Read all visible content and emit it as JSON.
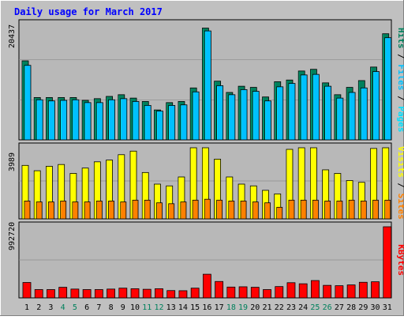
{
  "title": "Daily usage for March 2017",
  "colors": {
    "background": "#c0c0c0",
    "plot": "#b8b8b8",
    "title": "#0000ff",
    "hits": "#00805c",
    "files": "#00c0ff",
    "pages": "#00e0ff",
    "visits": "#ffff00",
    "sites": "#ff8000",
    "kbytes": "#ff0000",
    "weekend": "#00805c",
    "weekday": "#000000"
  },
  "chart_data": [
    {
      "type": "bar",
      "panel": "hits-files-pages",
      "ymax_label": "20437",
      "ylim": [
        0,
        20437
      ],
      "legend": [
        "Pages",
        "Files",
        "Hits"
      ],
      "days": [
        "1",
        "2",
        "3",
        "4",
        "5",
        "6",
        "7",
        "8",
        "9",
        "10",
        "11",
        "12",
        "13",
        "14",
        "15",
        "16",
        "17",
        "18",
        "19",
        "20",
        "21",
        "22",
        "23",
        "24",
        "25",
        "26",
        "27",
        "28",
        "29",
        "30",
        "31"
      ],
      "weekend_days": [
        "4",
        "5",
        "11",
        "12",
        "18",
        "19",
        "25",
        "26"
      ],
      "series": [
        {
          "name": "Hits",
          "values": [
            14000,
            7500,
            7500,
            7500,
            7500,
            7000,
            7300,
            7700,
            8000,
            7400,
            6800,
            5300,
            6600,
            6800,
            9200,
            19800,
            10400,
            8400,
            9500,
            9300,
            7600,
            10300,
            10600,
            12200,
            12500,
            10100,
            8000,
            9300,
            10500,
            12900,
            18800
          ]
        },
        {
          "name": "Files",
          "values": [
            13200,
            7100,
            6900,
            7000,
            7100,
            6600,
            6600,
            7100,
            7300,
            6800,
            6100,
            5100,
            6100,
            6200,
            8500,
            19300,
            9600,
            8000,
            8900,
            8600,
            6900,
            9400,
            10000,
            11500,
            11600,
            9500,
            7400,
            8400,
            9200,
            12100,
            18100
          ]
        },
        {
          "name": "Pages",
          "values": [
            0,
            0,
            0,
            0,
            0,
            0,
            0,
            0,
            0,
            0,
            0,
            0,
            0,
            0,
            0,
            0,
            0,
            0,
            0,
            0,
            0,
            0,
            0,
            0,
            0,
            0,
            0,
            0,
            0,
            0,
            0
          ]
        }
      ]
    },
    {
      "type": "bar",
      "panel": "visits-sites",
      "ymax_label": "3989",
      "ylim": [
        0,
        3989
      ],
      "legend": [
        "Sites",
        "Visits"
      ],
      "series": [
        {
          "name": "Visits",
          "values": [
            3000,
            2700,
            2950,
            3050,
            2550,
            2850,
            3200,
            3300,
            3600,
            3800,
            2600,
            1950,
            1850,
            2350,
            3989,
            3989,
            3350,
            2350,
            1950,
            1850,
            1600,
            1400,
            3900,
            3989,
            3989,
            2750,
            2550,
            2150,
            2050,
            3950,
            3989
          ]
        },
        {
          "name": "Sites",
          "values": [
            1000,
            950,
            950,
            1000,
            950,
            950,
            1000,
            1000,
            950,
            1050,
            1050,
            900,
            850,
            950,
            1050,
            1100,
            1050,
            1000,
            1000,
            950,
            900,
            650,
            1050,
            1050,
            1050,
            1000,
            1000,
            1050,
            1000,
            1050,
            1050
          ]
        }
      ]
    },
    {
      "type": "bar",
      "panel": "kbytes",
      "ymax_label": "992720",
      "ylim": [
        0,
        992720
      ],
      "legend": [
        "KBytes"
      ],
      "series": [
        {
          "name": "KBytes",
          "values": [
            215000,
            116000,
            116000,
            148000,
            123000,
            116000,
            116000,
            123000,
            136000,
            128000,
            120000,
            128000,
            102000,
            100000,
            136000,
            330000,
            229000,
            151000,
            155000,
            148000,
            116000,
            158000,
            212000,
            197000,
            242000,
            175000,
            170000,
            181000,
            218000,
            225000,
            992720
          ]
        }
      ]
    }
  ]
}
